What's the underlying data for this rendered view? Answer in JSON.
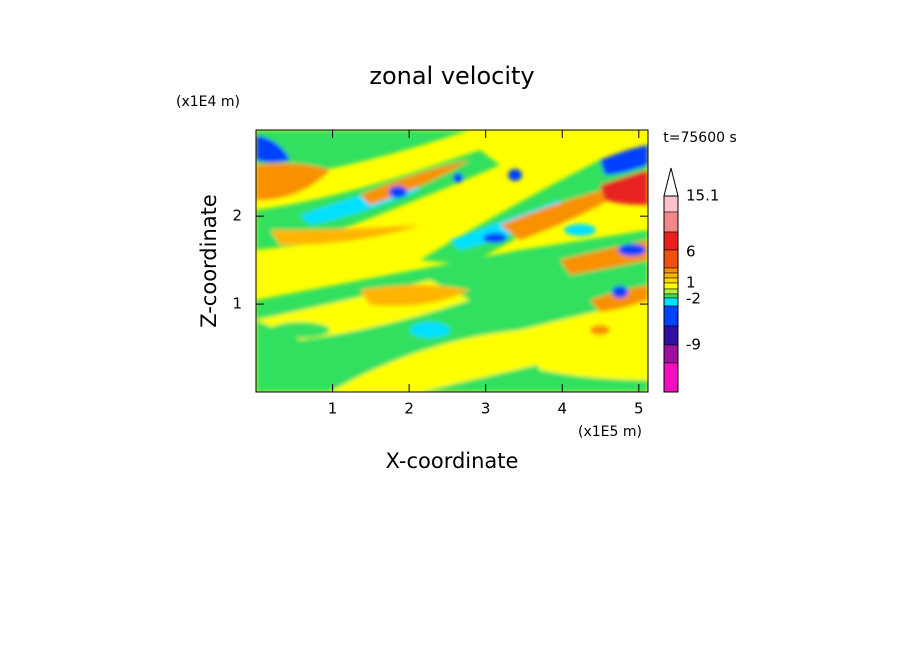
{
  "chart_data": {
    "type": "contour",
    "title": "zonal velocity",
    "x_label": "X-coordinate",
    "y_label": "Z-coordinate",
    "x_unit": "(x1E5 m)",
    "y_unit": "(x1E4 m)",
    "time_label": "t=75600 s",
    "xlim": [
      0,
      5.12
    ],
    "xticks": [
      1,
      2,
      3,
      4,
      5
    ],
    "ylim": [
      0,
      2.98
    ],
    "yticks": [
      1,
      2
    ],
    "colorbar_ticks": [
      15.1,
      6,
      1,
      -2,
      -9
    ],
    "colorbar_colors": [
      "#ffc0c8",
      "#f08888",
      "#e82020",
      "#f05010",
      "#f89000",
      "#ffb400",
      "#ffd800",
      "#ffff00",
      "#b0f040",
      "#30e060",
      "#00e0ff",
      "#0040ff",
      "#3010a0",
      "#a010a0",
      "#f010c0"
    ]
  }
}
